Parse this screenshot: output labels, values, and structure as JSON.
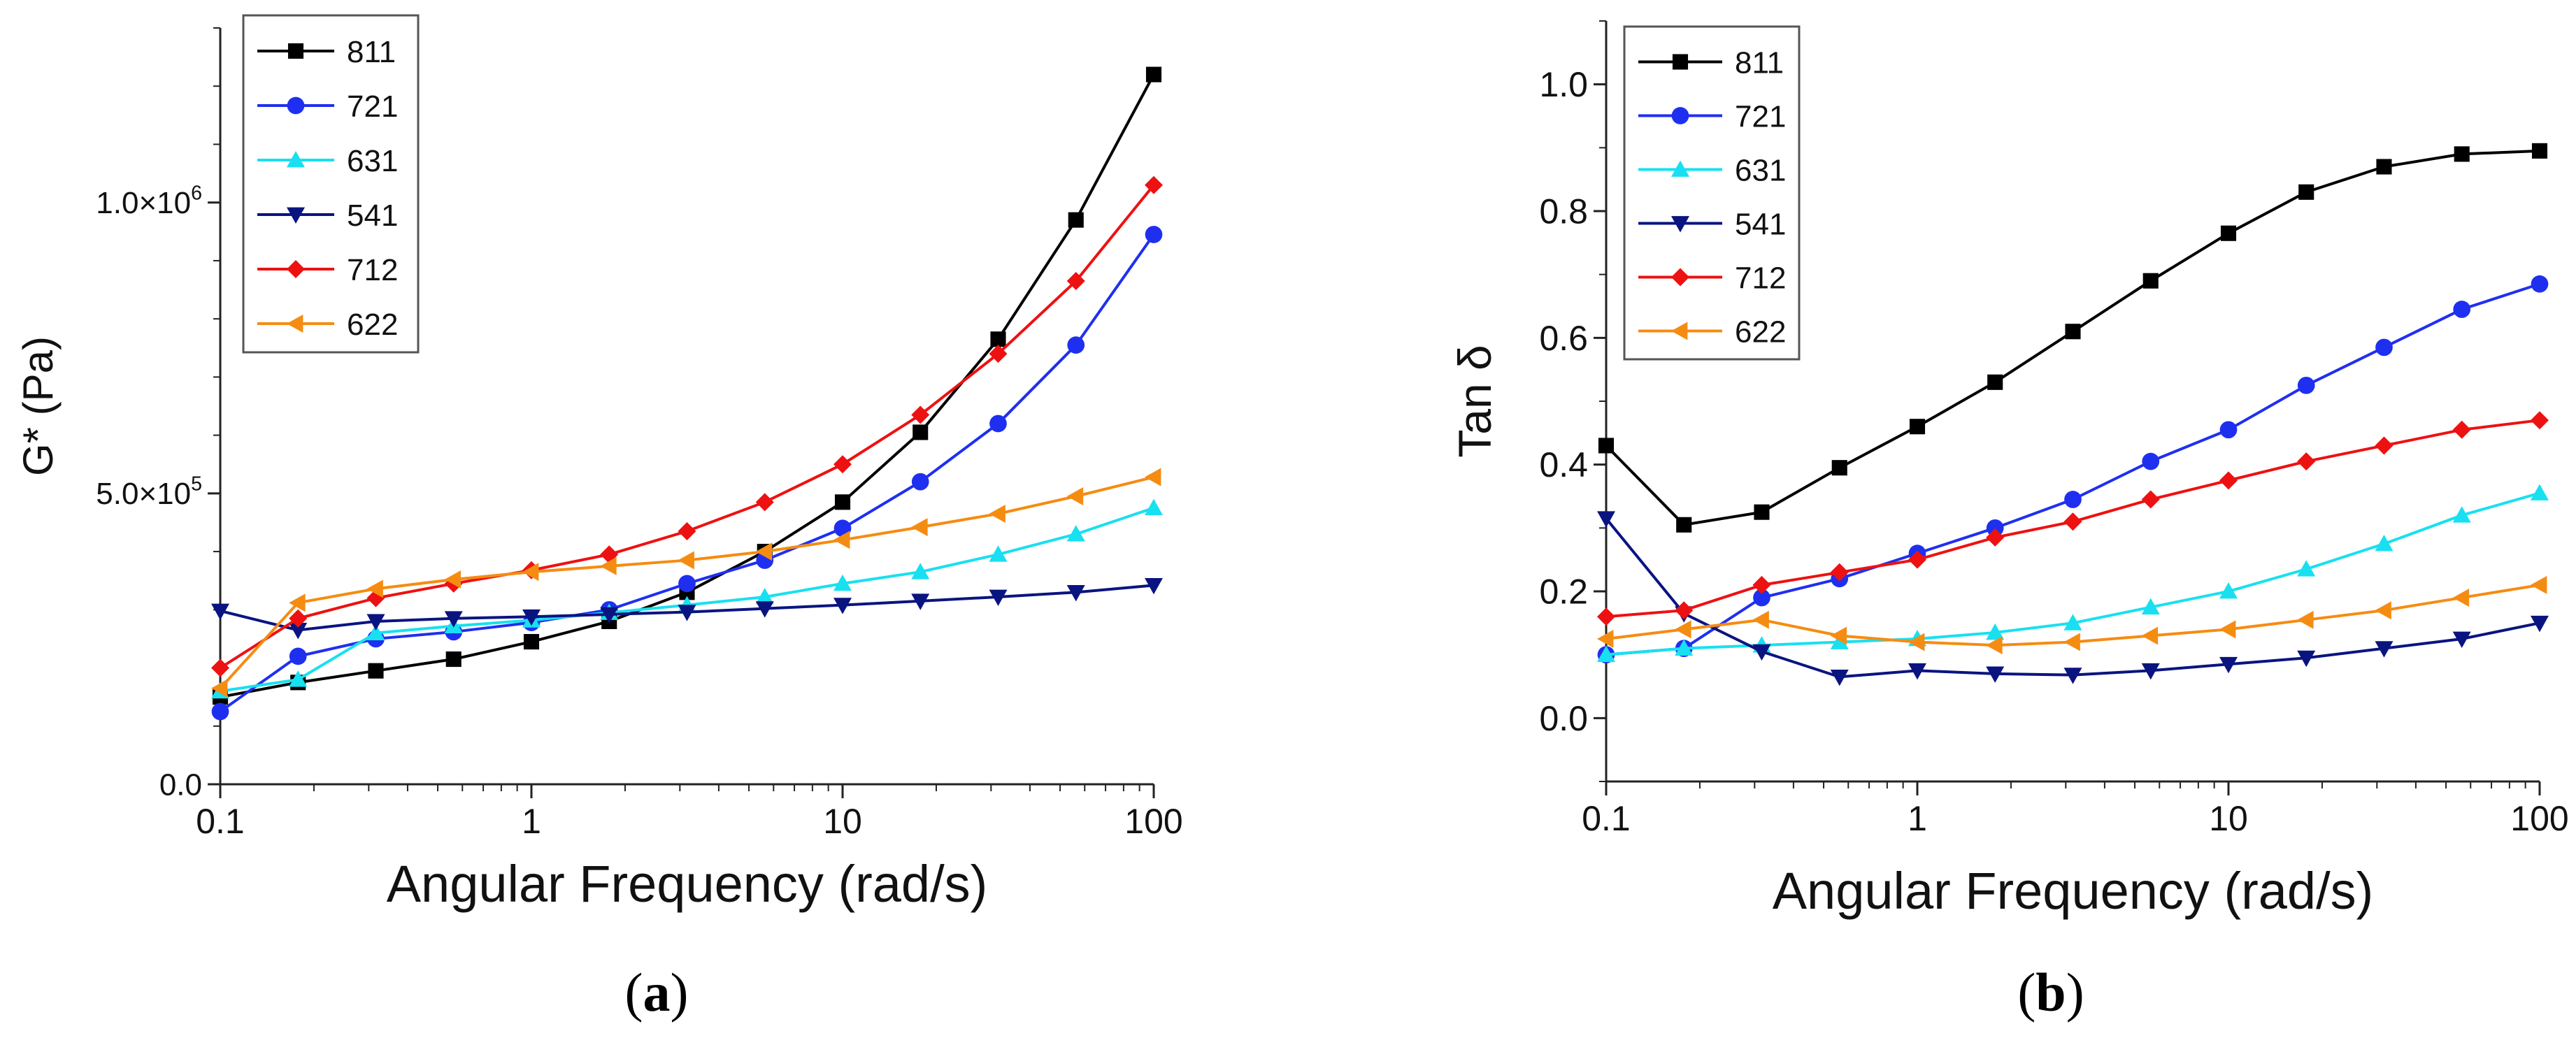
{
  "chart_data": [
    {
      "panel": "a",
      "type": "line",
      "xscale": "log",
      "xlim": [
        0.1,
        100
      ],
      "ylim": [
        0,
        1300000
      ],
      "xticks": [
        0.1,
        1,
        10,
        100
      ],
      "xtick_labels": [
        "0.1",
        "1",
        "10",
        "100"
      ],
      "yticks": [
        0,
        500000,
        1000000
      ],
      "ytick_labels": [
        {
          "mantissa": "0.0",
          "exp": ""
        },
        {
          "mantissa": "5.0×10",
          "exp": "5"
        },
        {
          "mantissa": "1.0×10",
          "exp": "6"
        }
      ],
      "xlabel": "Angular Frequency (rad/s)",
      "ylabel": "G* (Pa)",
      "legend_position": "top-left",
      "x": [
        0.1,
        0.1778,
        0.3162,
        0.5623,
        1,
        1.778,
        3.162,
        5.623,
        10,
        17.78,
        31.62,
        56.23,
        100
      ],
      "series": [
        {
          "name": "811",
          "color": "#000000",
          "marker": "square",
          "values": [
            150000,
            175000,
            195000,
            215000,
            245000,
            280000,
            330000,
            400000,
            485000,
            605000,
            765000,
            970000,
            1220000
          ]
        },
        {
          "name": "721",
          "color": "#1f2ff0",
          "marker": "circle",
          "values": [
            125000,
            220000,
            250000,
            262000,
            278000,
            300000,
            345000,
            385000,
            440000,
            520000,
            620000,
            755000,
            945000
          ]
        },
        {
          "name": "631",
          "color": "#18e0f0",
          "marker": "triangle-up",
          "values": [
            160000,
            180000,
            260000,
            272000,
            282000,
            295000,
            308000,
            322000,
            345000,
            365000,
            395000,
            430000,
            475000
          ]
        },
        {
          "name": "541",
          "color": "#0a1480",
          "marker": "triangle-down",
          "values": [
            298000,
            265000,
            280000,
            285000,
            288000,
            292000,
            296000,
            302000,
            308000,
            315000,
            322000,
            330000,
            342000
          ]
        },
        {
          "name": "712",
          "color": "#ee1111",
          "marker": "diamond",
          "values": [
            200000,
            285000,
            320000,
            345000,
            368000,
            395000,
            435000,
            485000,
            550000,
            635000,
            740000,
            865000,
            1030000
          ]
        },
        {
          "name": "622",
          "color": "#f58c12",
          "marker": "triangle-left",
          "values": [
            165000,
            312000,
            336000,
            352000,
            365000,
            375000,
            385000,
            400000,
            420000,
            442000,
            465000,
            495000,
            528000
          ]
        }
      ]
    },
    {
      "panel": "b",
      "type": "line",
      "xscale": "log",
      "xlim": [
        0.1,
        100
      ],
      "ylim": [
        -0.1,
        1.1
      ],
      "xticks": [
        0.1,
        1,
        10,
        100
      ],
      "xtick_labels": [
        "0.1",
        "1",
        "10",
        "100"
      ],
      "yticks": [
        0.0,
        0.2,
        0.4,
        0.6,
        0.8,
        1.0
      ],
      "ytick_labels": [
        "0.0",
        "0.2",
        "0.4",
        "0.6",
        "0.8",
        "1.0"
      ],
      "xlabel": "Angular Frequency (rad/s)",
      "ylabel": "Tan δ",
      "legend_position": "top-left",
      "x": [
        0.1,
        0.1778,
        0.3162,
        0.5623,
        1,
        1.778,
        3.162,
        5.623,
        10,
        17.78,
        31.62,
        56.23,
        100
      ],
      "series": [
        {
          "name": "811",
          "color": "#000000",
          "marker": "square",
          "values": [
            0.43,
            0.305,
            0.325,
            0.395,
            0.46,
            0.53,
            0.61,
            0.69,
            0.765,
            0.83,
            0.87,
            0.89,
            0.895
          ]
        },
        {
          "name": "721",
          "color": "#1f2ff0",
          "marker": "circle",
          "values": [
            0.1,
            0.11,
            0.19,
            0.22,
            0.26,
            0.3,
            0.345,
            0.405,
            0.455,
            0.525,
            0.585,
            0.645,
            0.685
          ]
        },
        {
          "name": "631",
          "color": "#18e0f0",
          "marker": "triangle-up",
          "values": [
            0.1,
            0.11,
            0.115,
            0.12,
            0.125,
            0.135,
            0.15,
            0.175,
            0.2,
            0.235,
            0.275,
            0.32,
            0.355
          ]
        },
        {
          "name": "541",
          "color": "#0a1480",
          "marker": "triangle-down",
          "values": [
            0.315,
            0.165,
            0.105,
            0.065,
            0.075,
            0.07,
            0.068,
            0.075,
            0.085,
            0.095,
            0.11,
            0.125,
            0.15
          ]
        },
        {
          "name": "712",
          "color": "#ee1111",
          "marker": "diamond",
          "values": [
            0.16,
            0.17,
            0.21,
            0.23,
            0.25,
            0.285,
            0.31,
            0.345,
            0.375,
            0.405,
            0.43,
            0.455,
            0.47
          ]
        },
        {
          "name": "622",
          "color": "#f58c12",
          "marker": "triangle-left",
          "values": [
            0.125,
            0.14,
            0.155,
            0.13,
            0.12,
            0.115,
            0.12,
            0.13,
            0.14,
            0.155,
            0.17,
            0.19,
            0.21
          ]
        }
      ]
    }
  ],
  "captions": [
    {
      "open": "(",
      "letter": "a",
      "close": ")"
    },
    {
      "open": "(",
      "letter": "b",
      "close": ")"
    }
  ]
}
